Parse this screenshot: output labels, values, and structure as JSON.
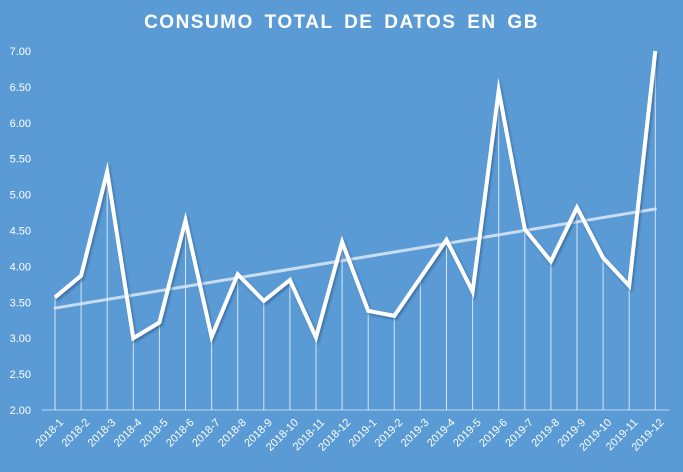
{
  "chart_data": {
    "type": "line",
    "title": "CONSUMO TOTAL DE DATOS EN GB",
    "categories": [
      "2018-1",
      "2018-2",
      "2018-3",
      "2018-4",
      "2018-5",
      "2018-6",
      "2018-7",
      "2018-8",
      "2018-9",
      "2018-10",
      "2018-11",
      "2018-12",
      "2019-1",
      "2019-2",
      "2019-3",
      "2019-4",
      "2019-5",
      "2019-6",
      "2019-7",
      "2019-8",
      "2019-9",
      "2019-10",
      "2019-11",
      "2019-12"
    ],
    "series": [
      {
        "values": [
          3.57,
          3.87,
          5.32,
          3.0,
          3.22,
          4.64,
          3.02,
          3.89,
          3.52,
          3.81,
          3.01,
          4.34,
          3.38,
          3.31,
          3.84,
          4.37,
          3.65,
          6.45,
          4.52,
          4.07,
          4.82,
          4.12,
          3.73,
          7.0
        ]
      }
    ],
    "trendline": {
      "type": "linear",
      "start": 3.42,
      "end": 4.8
    },
    "ylim": [
      2.0,
      7.0
    ],
    "yticks": [
      "2.00",
      "2.50",
      "3.00",
      "3.50",
      "4.00",
      "4.50",
      "5.00",
      "5.50",
      "6.00",
      "6.50",
      "7.00"
    ],
    "drop_lines": true,
    "grid": false,
    "legend": "none",
    "colors": {
      "background": "#5b9bd5",
      "line": "#ffffff",
      "trend": "#dce9f7",
      "text": "#ffffff"
    }
  }
}
